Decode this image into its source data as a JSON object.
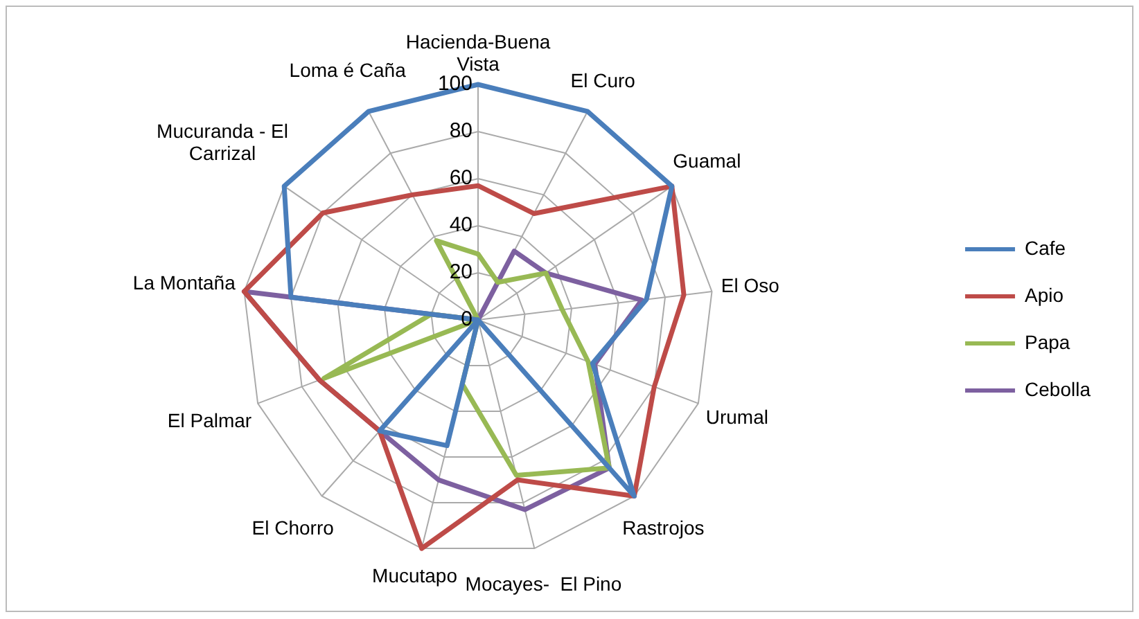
{
  "chart_data": {
    "type": "radar",
    "categories": [
      "Hacienda-Buena Vista",
      "El Curo",
      "Guamal",
      "El Oso",
      "Urumal",
      "Rastrojos",
      "Mocayes-  El Pino",
      "Mucutapo",
      "El Chorro",
      "El Palmar",
      "La Montaña",
      "Mucuranda - El Carrizal",
      "Loma é Caña"
    ],
    "series": [
      {
        "name": "Cafe",
        "color": "#4a7ebb",
        "values": [
          100,
          100,
          100,
          72,
          52,
          100,
          0,
          55,
          63,
          0,
          80,
          100,
          100
        ]
      },
      {
        "name": "Apio",
        "color": "#be4b48",
        "values": [
          57,
          51,
          100,
          88,
          80,
          100,
          70,
          100,
          63,
          72,
          100,
          80,
          60
        ]
      },
      {
        "name": "Papa",
        "color": "#98b954",
        "values": [
          28,
          18,
          35,
          36,
          50,
          84,
          68,
          28,
          0,
          70,
          20,
          0,
          38
        ]
      },
      {
        "name": "Cebolla",
        "color": "#7d60a0",
        "values": [
          0,
          33,
          35,
          70,
          53,
          84,
          83,
          70,
          63,
          72,
          100,
          0,
          0
        ]
      }
    ],
    "ylim": [
      0,
      100
    ],
    "yticks": [
      0,
      20,
      40,
      60,
      80,
      100
    ],
    "grid": true,
    "legend": "right",
    "marker": "none"
  }
}
